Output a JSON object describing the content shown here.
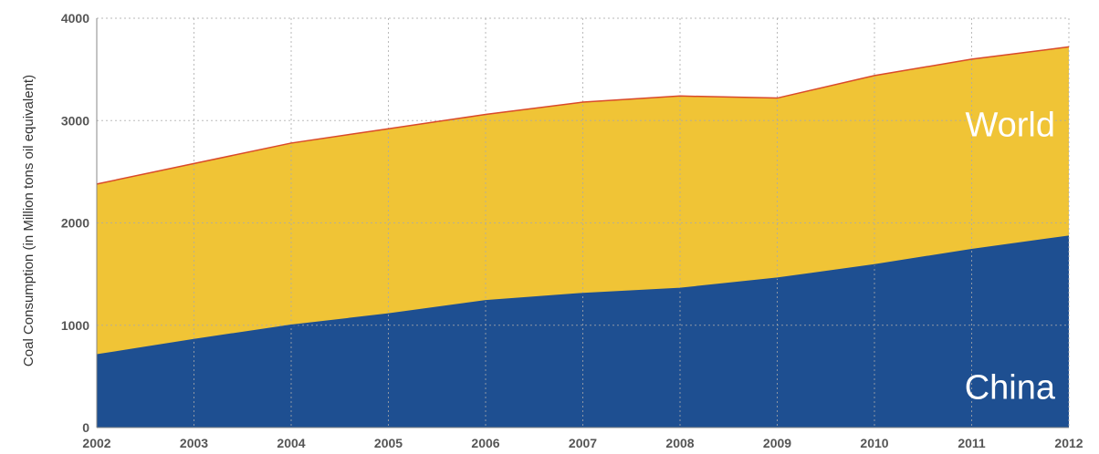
{
  "chart_data": {
    "type": "area",
    "title": "",
    "xlabel": "",
    "ylabel": "Coal Consumption (in Million tons oil equivalent)",
    "x": [
      2002,
      2003,
      2004,
      2005,
      2006,
      2007,
      2008,
      2009,
      2010,
      2011,
      2012
    ],
    "xlim": [
      2002,
      2012
    ],
    "ylim": [
      0,
      4000
    ],
    "yticks": [
      0,
      1000,
      2000,
      3000,
      4000
    ],
    "grid": true,
    "legend": "inline-labels-right",
    "series": [
      {
        "name": "World",
        "values": [
          2380,
          2580,
          2780,
          2920,
          3060,
          3180,
          3240,
          3220,
          3440,
          3600,
          3720
        ],
        "color": "#f0c436",
        "line_color": "#d94a2a"
      },
      {
        "name": "China",
        "values": [
          710,
          860,
          1000,
          1110,
          1240,
          1310,
          1360,
          1460,
          1590,
          1740,
          1870
        ],
        "color": "#1e4f91"
      }
    ]
  }
}
